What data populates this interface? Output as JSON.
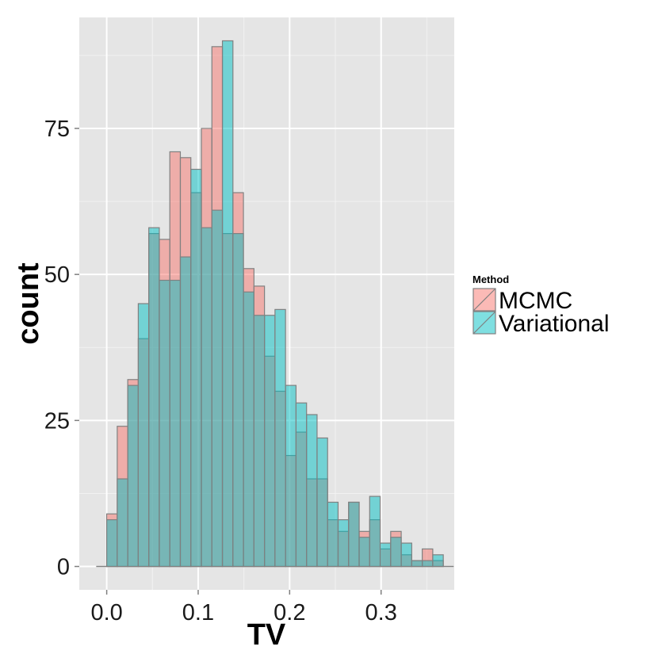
{
  "chart_data": {
    "type": "histogram",
    "xlabel": "TV",
    "ylabel": "count",
    "x_ticks": [
      0.0,
      0.1,
      0.2,
      0.3
    ],
    "x_tick_labels": [
      "0.0",
      "0.1",
      "0.2",
      "0.3"
    ],
    "y_ticks": [
      0,
      25,
      50,
      75
    ],
    "y_tick_labels": [
      "0",
      "25",
      "50",
      "75"
    ],
    "xlim": [
      -0.03,
      0.38
    ],
    "ylim": [
      -4,
      94
    ],
    "bin_width": 0.0115,
    "bin_start": 0.0,
    "grid": true,
    "legend_position": "right",
    "legend": {
      "title": "Method",
      "entries": [
        "MCMC",
        "Variational"
      ]
    },
    "series": [
      {
        "name": "MCMC",
        "color": "#f8766d",
        "values": [
          9,
          24,
          32,
          39,
          57,
          56,
          71,
          70,
          64,
          75,
          89,
          57,
          64,
          51,
          48,
          36,
          30,
          19,
          23,
          15,
          15,
          8,
          6,
          11,
          6,
          8,
          3,
          6,
          2,
          1,
          3,
          1
        ]
      },
      {
        "name": "Variational",
        "color": "#00bfc4",
        "values": [
          8,
          15,
          31,
          45,
          58,
          49,
          49,
          53,
          68,
          58,
          61,
          90,
          57,
          47,
          43,
          43,
          44,
          31,
          28,
          26,
          22,
          11,
          8,
          11,
          5,
          12,
          4,
          5,
          4,
          1,
          1,
          2
        ]
      }
    ]
  }
}
